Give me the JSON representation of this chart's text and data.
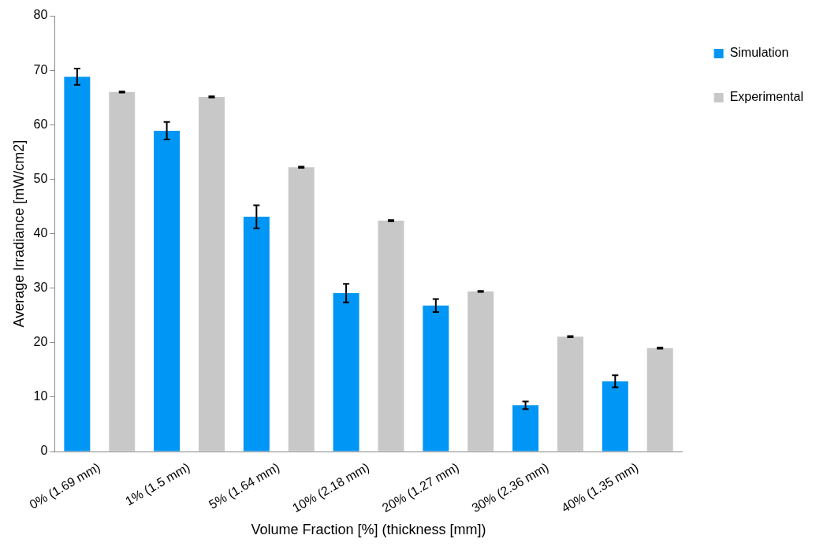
{
  "chart_data": {
    "type": "bar",
    "xlabel": "Volume Fraction [%] (thickness [mm])",
    "ylabel": "Average Irradiance [mW/cm2]",
    "categories": [
      "0% (1.69 mm)",
      "1% (1.5 mm)",
      "5% (1.64 mm)",
      "10% (2.18 mm)",
      "20% (1.27 mm)",
      "30% (2.36 mm)",
      "40% (1.35 mm)"
    ],
    "series": [
      {
        "name": "Simulation",
        "color": "#0096f5",
        "values": [
          68.8,
          58.9,
          43.1,
          29.1,
          26.8,
          8.5,
          12.9
        ],
        "errors": [
          1.5,
          1.6,
          2.1,
          1.7,
          1.2,
          0.7,
          1.1
        ]
      },
      {
        "name": "Experimental",
        "color": "#c8c8c8",
        "values": [
          66.0,
          65.1,
          52.2,
          42.4,
          29.4,
          21.1,
          19.0
        ],
        "errors": [
          0.1,
          0.1,
          0.1,
          0.1,
          0.1,
          0.1,
          0.1
        ]
      }
    ],
    "ylim": [
      0,
      80
    ],
    "yticks": [
      0,
      10,
      20,
      30,
      40,
      50,
      60,
      70,
      80
    ],
    "grid": false,
    "legend": "top right"
  }
}
